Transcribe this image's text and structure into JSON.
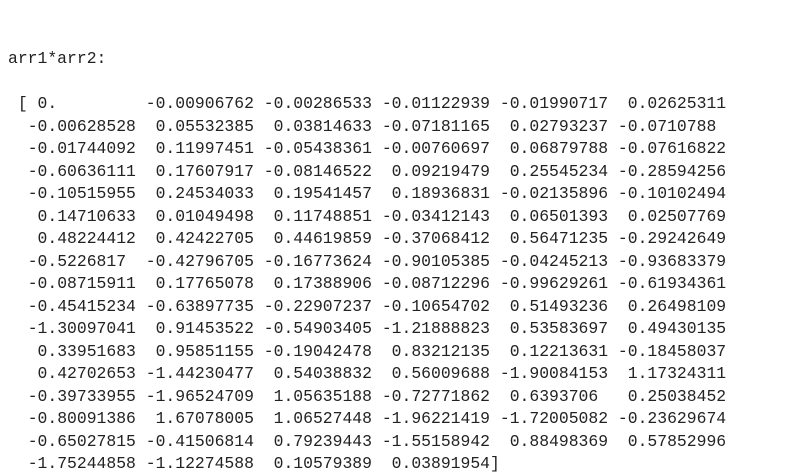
{
  "output": {
    "label": "arr1*arr2:",
    "rows": [
      [
        "0.",
        "-0.00906762",
        "-0.00286533",
        "-0.01122939",
        "-0.01990717",
        "0.02625311"
      ],
      [
        "-0.00628528",
        "0.05532385",
        "0.03814633",
        "-0.07181165",
        "0.02793237",
        "-0.0710788"
      ],
      [
        "-0.01744092",
        "0.11997451",
        "-0.05438361",
        "-0.00760697",
        "0.06879788",
        "-0.07616822"
      ],
      [
        "-0.60636111",
        "0.17607917",
        "-0.08146522",
        "0.09219479",
        "0.25545234",
        "-0.28594256"
      ],
      [
        "-0.10515955",
        "0.24534033",
        "0.19541457",
        "0.18936831",
        "-0.02135896",
        "-0.10102494"
      ],
      [
        "0.14710633",
        "0.01049498",
        "0.11748851",
        "-0.03412143",
        "0.06501393",
        "0.02507769"
      ],
      [
        "0.48224412",
        "0.42422705",
        "0.44619859",
        "-0.37068412",
        "0.56471235",
        "-0.29242649"
      ],
      [
        "-0.5226817",
        "-0.42796705",
        "-0.16773624",
        "-0.90105385",
        "-0.04245213",
        "-0.93683379"
      ],
      [
        "-0.08715911",
        "0.17765078",
        "0.17388906",
        "-0.08712296",
        "-0.99629261",
        "-0.61934361"
      ],
      [
        "-0.45415234",
        "-0.63897735",
        "-0.22907237",
        "-0.10654702",
        "0.51493236",
        "0.26498109"
      ],
      [
        "-1.30097041",
        "0.91453522",
        "-0.54903405",
        "-1.21888823",
        "0.53583697",
        "0.49430135"
      ],
      [
        "0.33951683",
        "0.95851155",
        "-0.19042478",
        "0.83212135",
        "0.12213631",
        "-0.18458037"
      ],
      [
        "0.42702653",
        "-1.44230477",
        "0.54038832",
        "0.56009688",
        "-1.90084153",
        "1.17324311"
      ],
      [
        "-0.39733955",
        "-1.96524709",
        "1.05635188",
        "-0.72771862",
        "0.6393706",
        "0.25038452"
      ],
      [
        "-0.80091386",
        "1.67078005",
        "1.06527448",
        "-1.96221419",
        "-1.72005082",
        "-0.23629674"
      ],
      [
        "-0.65027815",
        "-0.41506814",
        "0.79239443",
        "-1.55158942",
        "0.88498369",
        "0.57852996"
      ],
      [
        "-1.75244858",
        "-1.12274588",
        "0.10579389",
        "0.03891954"
      ]
    ]
  }
}
